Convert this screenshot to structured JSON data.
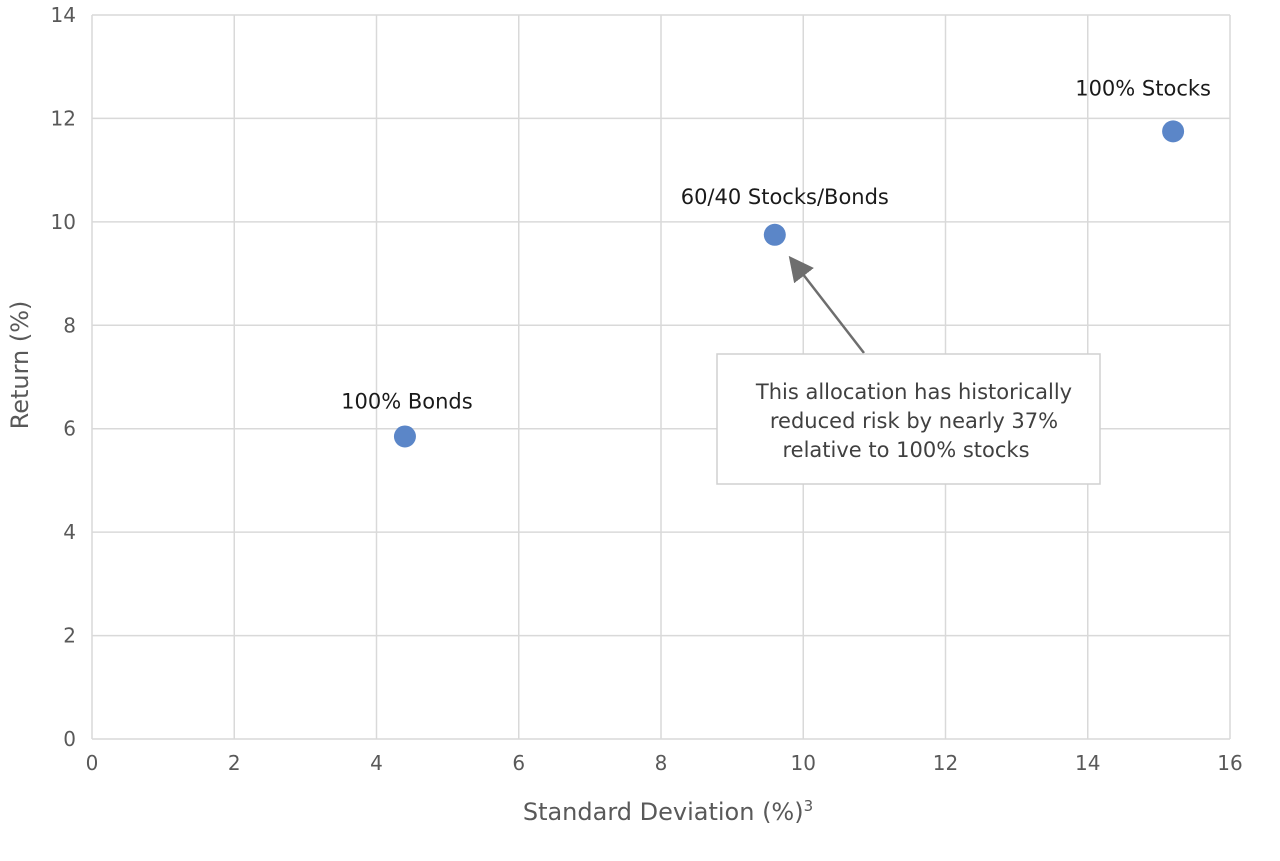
{
  "chart_data": {
    "type": "scatter",
    "xlabel": "Standard Deviation (%)",
    "xlabel_superscript": "3",
    "ylabel": "Return (%)",
    "xlim": [
      0,
      16
    ],
    "ylim": [
      0,
      14
    ],
    "x_ticks": [
      0,
      2,
      4,
      6,
      8,
      10,
      12,
      14,
      16
    ],
    "y_ticks": [
      0,
      2,
      4,
      6,
      8,
      10,
      12,
      14
    ],
    "grid": true,
    "legend": "none",
    "marker_color": "#5b86c8",
    "points": [
      {
        "label": "100% Bonds",
        "x": 4.4,
        "y": 5.85
      },
      {
        "label": "60/40 Stocks/Bonds",
        "x": 9.6,
        "y": 9.75
      },
      {
        "label": "100% Stocks",
        "x": 15.2,
        "y": 11.75
      }
    ],
    "annotation": {
      "target_point": "60/40 Stocks/Bonds",
      "lines": [
        "This allocation has historically",
        "reduced risk by nearly 37%",
        "relative to 100% stocks"
      ]
    }
  }
}
